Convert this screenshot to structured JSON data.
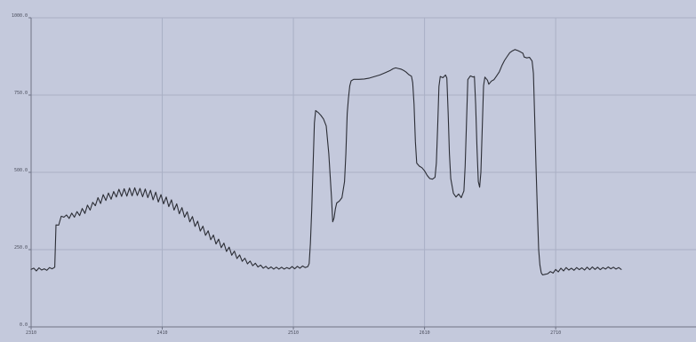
{
  "chart_data": {
    "type": "line",
    "title": "",
    "xlabel": "",
    "ylabel": "",
    "xlim": [
      2310,
      2817
    ],
    "ylim": [
      0,
      1000
    ],
    "grid": true,
    "x_ticks": [
      2310,
      2410,
      2510,
      2610,
      2710
    ],
    "x_tick_labels": [
      "2310",
      "2410",
      "2510",
      "2610",
      "2710"
    ],
    "y_ticks": [
      0,
      250,
      500,
      750,
      1000
    ],
    "y_tick_labels": [
      "0.0",
      "250.0",
      "500.0",
      "750.0",
      "1000.0"
    ],
    "series": [
      {
        "color": "#2b2d35",
        "points": [
          [
            2310,
            186
          ],
          [
            2312,
            190
          ],
          [
            2314,
            181
          ],
          [
            2316,
            191
          ],
          [
            2318,
            184
          ],
          [
            2320,
            188
          ],
          [
            2322,
            183
          ],
          [
            2324,
            192
          ],
          [
            2326,
            188
          ],
          [
            2328,
            193
          ],
          [
            2329,
            330
          ],
          [
            2331,
            329
          ],
          [
            2333,
            358
          ],
          [
            2335,
            355
          ],
          [
            2337,
            362
          ],
          [
            2339,
            351
          ],
          [
            2341,
            368
          ],
          [
            2343,
            355
          ],
          [
            2345,
            373
          ],
          [
            2347,
            360
          ],
          [
            2349,
            383
          ],
          [
            2351,
            367
          ],
          [
            2353,
            394
          ],
          [
            2355,
            378
          ],
          [
            2357,
            403
          ],
          [
            2359,
            392
          ],
          [
            2361,
            418
          ],
          [
            2363,
            399
          ],
          [
            2365,
            428
          ],
          [
            2367,
            409
          ],
          [
            2369,
            433
          ],
          [
            2371,
            413
          ],
          [
            2373,
            438
          ],
          [
            2375,
            420
          ],
          [
            2377,
            445
          ],
          [
            2379,
            422
          ],
          [
            2381,
            447
          ],
          [
            2383,
            423
          ],
          [
            2385,
            449
          ],
          [
            2387,
            424
          ],
          [
            2389,
            450
          ],
          [
            2391,
            425
          ],
          [
            2393,
            448
          ],
          [
            2395,
            421
          ],
          [
            2397,
            446
          ],
          [
            2399,
            418
          ],
          [
            2401,
            442
          ],
          [
            2403,
            411
          ],
          [
            2405,
            436
          ],
          [
            2407,
            404
          ],
          [
            2409,
            428
          ],
          [
            2411,
            398
          ],
          [
            2413,
            420
          ],
          [
            2415,
            389
          ],
          [
            2417,
            411
          ],
          [
            2419,
            378
          ],
          [
            2421,
            398
          ],
          [
            2423,
            366
          ],
          [
            2425,
            386
          ],
          [
            2427,
            355
          ],
          [
            2429,
            372
          ],
          [
            2431,
            340
          ],
          [
            2433,
            357
          ],
          [
            2435,
            325
          ],
          [
            2437,
            342
          ],
          [
            2439,
            310
          ],
          [
            2441,
            326
          ],
          [
            2443,
            296
          ],
          [
            2445,
            311
          ],
          [
            2447,
            282
          ],
          [
            2449,
            297
          ],
          [
            2451,
            268
          ],
          [
            2453,
            284
          ],
          [
            2455,
            256
          ],
          [
            2457,
            271
          ],
          [
            2459,
            244
          ],
          [
            2461,
            258
          ],
          [
            2463,
            232
          ],
          [
            2465,
            245
          ],
          [
            2467,
            221
          ],
          [
            2469,
            233
          ],
          [
            2471,
            212
          ],
          [
            2473,
            222
          ],
          [
            2475,
            204
          ],
          [
            2477,
            213
          ],
          [
            2479,
            198
          ],
          [
            2481,
            206
          ],
          [
            2483,
            194
          ],
          [
            2485,
            200
          ],
          [
            2487,
            190
          ],
          [
            2489,
            196
          ],
          [
            2491,
            188
          ],
          [
            2493,
            194
          ],
          [
            2495,
            187
          ],
          [
            2497,
            193
          ],
          [
            2499,
            187
          ],
          [
            2501,
            193
          ],
          [
            2503,
            187
          ],
          [
            2505,
            192
          ],
          [
            2507,
            188
          ],
          [
            2509,
            195
          ],
          [
            2511,
            188
          ],
          [
            2513,
            196
          ],
          [
            2515,
            190
          ],
          [
            2517,
            197
          ],
          [
            2519,
            192
          ],
          [
            2521,
            195
          ],
          [
            2522,
            205
          ],
          [
            2523,
            270
          ],
          [
            2524,
            380
          ],
          [
            2525,
            520
          ],
          [
            2526,
            660
          ],
          [
            2527,
            700
          ],
          [
            2529,
            693
          ],
          [
            2531,
            684
          ],
          [
            2533,
            672
          ],
          [
            2535,
            650
          ],
          [
            2537,
            560
          ],
          [
            2539,
            420
          ],
          [
            2540,
            340
          ],
          [
            2541,
            352
          ],
          [
            2542,
            382
          ],
          [
            2543,
            401
          ],
          [
            2545,
            407
          ],
          [
            2547,
            418
          ],
          [
            2549,
            470
          ],
          [
            2550,
            560
          ],
          [
            2551,
            690
          ],
          [
            2552,
            740
          ],
          [
            2553,
            780
          ],
          [
            2554,
            796
          ],
          [
            2556,
            801
          ],
          [
            2560,
            801
          ],
          [
            2564,
            802
          ],
          [
            2568,
            805
          ],
          [
            2572,
            810
          ],
          [
            2576,
            815
          ],
          [
            2580,
            822
          ],
          [
            2584,
            830
          ],
          [
            2586,
            835
          ],
          [
            2588,
            838
          ],
          [
            2590,
            836
          ],
          [
            2592,
            834
          ],
          [
            2594,
            830
          ],
          [
            2596,
            824
          ],
          [
            2598,
            816
          ],
          [
            2600,
            811
          ],
          [
            2601,
            790
          ],
          [
            2602,
            720
          ],
          [
            2603,
            600
          ],
          [
            2604,
            530
          ],
          [
            2606,
            520
          ],
          [
            2608,
            515
          ],
          [
            2610,
            505
          ],
          [
            2612,
            490
          ],
          [
            2614,
            480
          ],
          [
            2616,
            478
          ],
          [
            2618,
            484
          ],
          [
            2619,
            530
          ],
          [
            2620,
            650
          ],
          [
            2621,
            778
          ],
          [
            2622,
            810
          ],
          [
            2624,
            806
          ],
          [
            2626,
            815
          ],
          [
            2627,
            805
          ],
          [
            2628,
            690
          ],
          [
            2629,
            560
          ],
          [
            2630,
            480
          ],
          [
            2632,
            432
          ],
          [
            2634,
            420
          ],
          [
            2636,
            430
          ],
          [
            2638,
            418
          ],
          [
            2640,
            440
          ],
          [
            2641,
            520
          ],
          [
            2642,
            660
          ],
          [
            2643,
            800
          ],
          [
            2645,
            812
          ],
          [
            2647,
            808
          ],
          [
            2648,
            810
          ],
          [
            2649,
            720
          ],
          [
            2650,
            580
          ],
          [
            2651,
            470
          ],
          [
            2652,
            452
          ],
          [
            2653,
            500
          ],
          [
            2654,
            640
          ],
          [
            2655,
            780
          ],
          [
            2656,
            808
          ],
          [
            2658,
            798
          ],
          [
            2659,
            785
          ],
          [
            2661,
            795
          ],
          [
            2663,
            800
          ],
          [
            2665,
            812
          ],
          [
            2667,
            825
          ],
          [
            2669,
            845
          ],
          [
            2671,
            862
          ],
          [
            2673,
            875
          ],
          [
            2675,
            887
          ],
          [
            2677,
            893
          ],
          [
            2679,
            897
          ],
          [
            2681,
            894
          ],
          [
            2683,
            890
          ],
          [
            2685,
            885
          ],
          [
            2686,
            873
          ],
          [
            2688,
            870
          ],
          [
            2690,
            872
          ],
          [
            2692,
            860
          ],
          [
            2693,
            820
          ],
          [
            2694,
            680
          ],
          [
            2695,
            520
          ],
          [
            2696,
            380
          ],
          [
            2697,
            250
          ],
          [
            2698,
            200
          ],
          [
            2699,
            175
          ],
          [
            2700,
            168
          ],
          [
            2702,
            170
          ],
          [
            2704,
            172
          ],
          [
            2706,
            179
          ],
          [
            2708,
            174
          ],
          [
            2710,
            186
          ],
          [
            2712,
            178
          ],
          [
            2714,
            190
          ],
          [
            2716,
            181
          ],
          [
            2718,
            192
          ],
          [
            2720,
            184
          ],
          [
            2722,
            190
          ],
          [
            2724,
            183
          ],
          [
            2726,
            192
          ],
          [
            2728,
            185
          ],
          [
            2730,
            191
          ],
          [
            2732,
            184
          ],
          [
            2734,
            193
          ],
          [
            2736,
            185
          ],
          [
            2738,
            194
          ],
          [
            2740,
            186
          ],
          [
            2742,
            193
          ],
          [
            2744,
            185
          ],
          [
            2746,
            192
          ],
          [
            2748,
            187
          ],
          [
            2750,
            194
          ],
          [
            2752,
            188
          ],
          [
            2754,
            193
          ],
          [
            2756,
            187
          ],
          [
            2758,
            192
          ],
          [
            2760,
            186
          ]
        ]
      }
    ]
  }
}
